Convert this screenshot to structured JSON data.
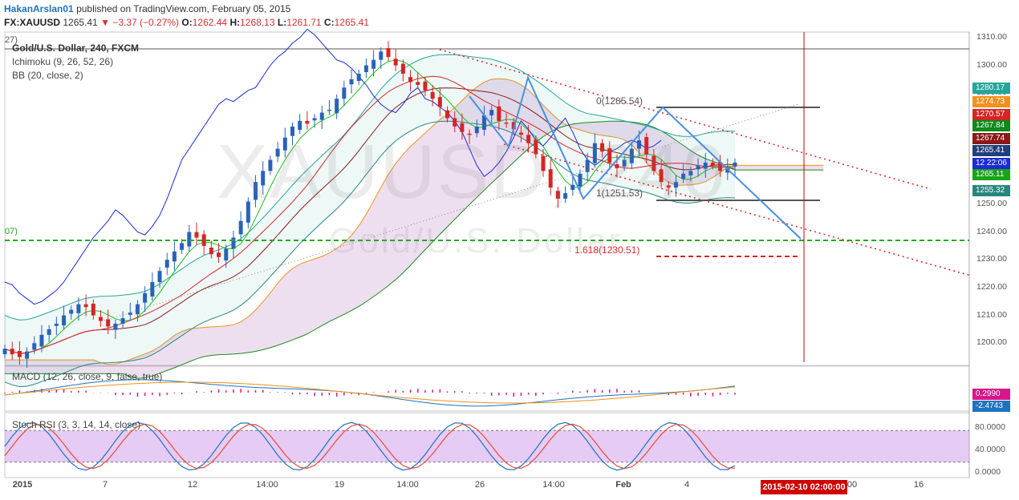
{
  "header": {
    "author": "HakanArslan01",
    "published": "published on TradingView.com, February 05, 2015",
    "symbol": "FX:XAUUSD",
    "last": "1265.41",
    "change": "▼ −3.37 (−0.27%)",
    "open_k": "O:",
    "open_v": "1262.44",
    "high_k": "H:",
    "high_v": "1268.13",
    "low_k": "L:",
    "low_v": "1261.71",
    "close_k": "C:",
    "close_v": "1265.41"
  },
  "legends": {
    "main_title": "Gold/U.S. Dollar, 240, FXCM",
    "ichimoku": "Ichimoku (9, 26, 52, 26)",
    "bb": "BB (20, close, 2)",
    "macd": "MACD (12, 26, close, 9, false, true)",
    "stoch": "Stoch RSI (3, 3, 14, 14, close)",
    "edge_top": "27)",
    "edge_mid": "07)"
  },
  "watermark": {
    "symbol": "XAUUSD, 240",
    "name": "Gold/U.S. Dollar"
  },
  "fib": {
    "level0": "0(1285.54)",
    "level1": "1(1251.53)",
    "level1618": "1.618(1230.51)"
  },
  "price_tags": [
    {
      "label": "1280.17",
      "color": "#26a69a"
    },
    {
      "label": "1274.73",
      "color": "#f2911b"
    },
    {
      "label": "1270.57",
      "color": "#d62424"
    },
    {
      "label": "1267.84",
      "color": "#0e8a1a"
    },
    {
      "label": "1267.74",
      "color": "#8b1a1a"
    },
    {
      "label": "1265.41",
      "color": "#1f3f7a"
    },
    {
      "label": "12 22:06",
      "color": "#1a2bd6"
    },
    {
      "label": "1265.11",
      "color": "#19a319"
    },
    {
      "label": "1255.32",
      "color": "#26877e"
    }
  ],
  "indicator_tags": [
    {
      "label": "0.2990",
      "color": "#d6178a"
    },
    {
      "label": "-2.4743",
      "color": "#1e73be"
    }
  ],
  "axis_labels": {
    "price": [
      "1310.00",
      "1300.00",
      "1290.00",
      "1280.00",
      "1270.00",
      "1260.00",
      "1250.00",
      "1240.00",
      "1230.00",
      "1220.00",
      "1210.00",
      "1200.00"
    ],
    "stoch": [
      "80.0000",
      "40.0000",
      "0.0000"
    ],
    "time": [
      "2015",
      "7",
      "12",
      "14:00",
      "19",
      "14:00",
      "26",
      "14:00",
      "Feb",
      "4",
      "00",
      "16"
    ],
    "cursor": "2015-02-10 02:00:00"
  },
  "chart_data": {
    "type": "candlestick",
    "title": "Gold/U.S. Dollar, 240, FXCM",
    "ylim": [
      1192,
      1312
    ],
    "y_ticks": [
      1200,
      1210,
      1220,
      1230,
      1240,
      1250,
      1260,
      1270,
      1280,
      1290,
      1300,
      1310
    ],
    "horizontal_level": 1237,
    "closes": [
      1198,
      1196,
      1195,
      1197,
      1200,
      1203,
      1205,
      1207,
      1210,
      1212,
      1214,
      1213,
      1210,
      1208,
      1206,
      1207,
      1209,
      1211,
      1214,
      1218,
      1222,
      1226,
      1230,
      1233,
      1236,
      1240,
      1238,
      1235,
      1232,
      1231,
      1234,
      1238,
      1244,
      1251,
      1258,
      1262,
      1266,
      1270,
      1274,
      1278,
      1280,
      1279,
      1281,
      1283,
      1284,
      1288,
      1292,
      1295,
      1297,
      1300,
      1302,
      1305,
      1303,
      1300,
      1297,
      1294,
      1293,
      1291,
      1288,
      1285,
      1281,
      1278,
      1276,
      1275,
      1278,
      1282,
      1284,
      1280,
      1279,
      1277,
      1275,
      1272,
      1268,
      1262,
      1256,
      1252,
      1254,
      1257,
      1261,
      1266,
      1272,
      1269,
      1265,
      1263,
      1266,
      1270,
      1273,
      1268,
      1262,
      1258,
      1256,
      1258,
      1261,
      1262,
      1264,
      1265,
      1264,
      1262,
      1263,
      1265
    ],
    "macd_range": [
      -8,
      6
    ],
    "stoch_range": [
      0,
      100
    ],
    "stoch_levels": [
      80,
      20
    ]
  }
}
